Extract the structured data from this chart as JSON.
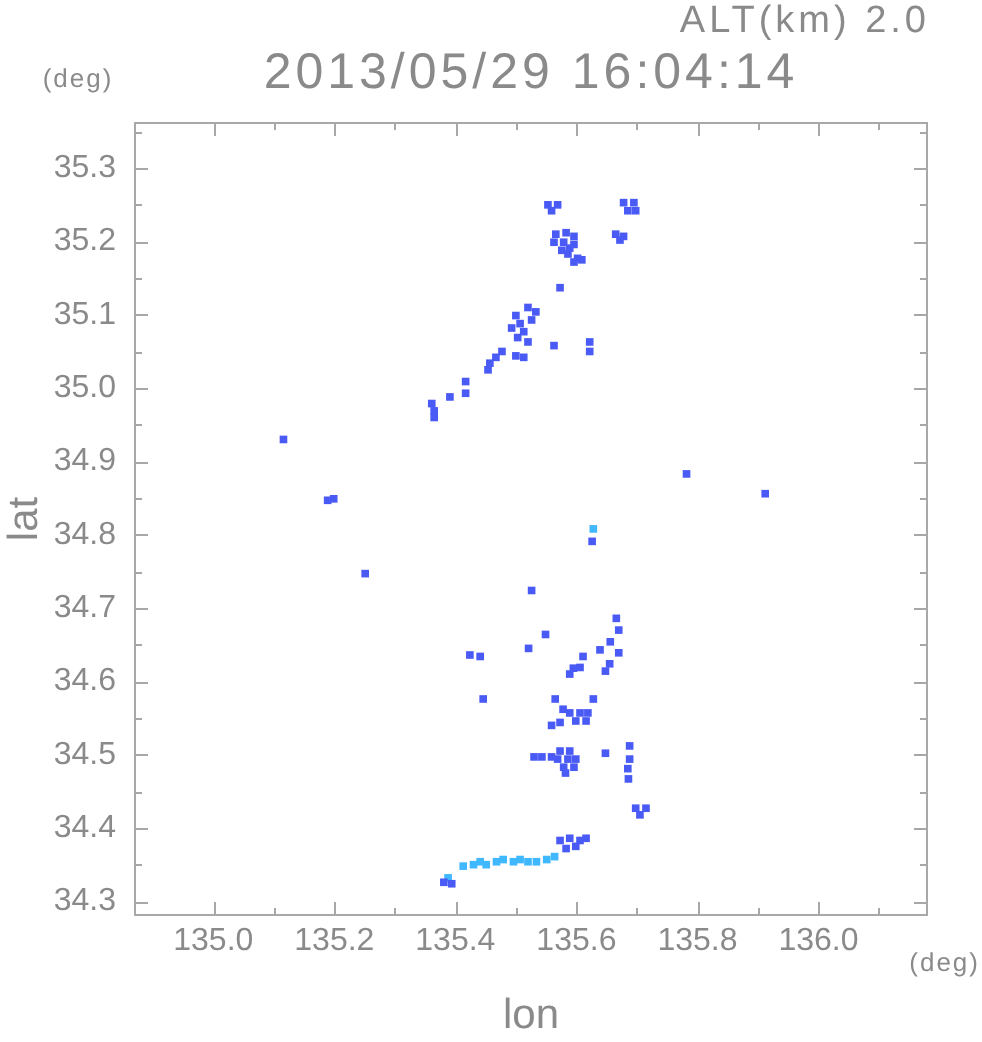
{
  "chart_data": {
    "type": "scatter",
    "title": "2013/05/29 16:04:14",
    "subtitle": "ALT(km) 2.0",
    "xlabel": "lon",
    "ylabel": "lat",
    "annotations": [
      "(deg)",
      "(deg)"
    ],
    "xlim": [
      134.869,
      136.181
    ],
    "ylim": [
      34.28,
      35.363
    ],
    "xticks": [
      {
        "value": 135.0,
        "label": "135.0"
      },
      {
        "value": 135.1,
        "label": null
      },
      {
        "value": 135.2,
        "label": "135.2"
      },
      {
        "value": 135.3,
        "label": null
      },
      {
        "value": 135.4,
        "label": "135.4"
      },
      {
        "value": 135.5,
        "label": null
      },
      {
        "value": 135.6,
        "label": "135.6"
      },
      {
        "value": 135.7,
        "label": null
      },
      {
        "value": 135.8,
        "label": "135.8"
      },
      {
        "value": 135.9,
        "label": null
      },
      {
        "value": 136.0,
        "label": "136.0"
      },
      {
        "value": 136.1,
        "label": null
      }
    ],
    "yticks": [
      {
        "value": 34.3,
        "label": "34.3"
      },
      {
        "value": 34.35,
        "label": null
      },
      {
        "value": 34.4,
        "label": "34.4"
      },
      {
        "value": 34.45,
        "label": null
      },
      {
        "value": 34.5,
        "label": "34.5"
      },
      {
        "value": 34.55,
        "label": null
      },
      {
        "value": 34.6,
        "label": "34.6"
      },
      {
        "value": 34.65,
        "label": null
      },
      {
        "value": 34.7,
        "label": "34.7"
      },
      {
        "value": 34.75,
        "label": null
      },
      {
        "value": 34.8,
        "label": "34.8"
      },
      {
        "value": 34.85,
        "label": null
      },
      {
        "value": 34.9,
        "label": "34.9"
      },
      {
        "value": 34.95,
        "label": null
      },
      {
        "value": 35.0,
        "label": "35.0"
      },
      {
        "value": 35.05,
        "label": null
      },
      {
        "value": 35.1,
        "label": "35.1"
      },
      {
        "value": 35.15,
        "label": null
      },
      {
        "value": 35.2,
        "label": "35.2"
      },
      {
        "value": 35.25,
        "label": null
      },
      {
        "value": 35.3,
        "label": "35.3"
      },
      {
        "value": 35.35,
        "label": null
      }
    ],
    "marker": "square",
    "legend": false,
    "grid": false,
    "series": [
      {
        "color": "#4a5af5",
        "x": [
          135.553,
          135.569,
          135.559,
          135.678,
          135.695,
          135.685,
          135.698,
          135.566,
          135.583,
          135.596,
          135.563,
          135.579,
          135.596,
          135.576,
          135.586,
          135.589,
          135.602,
          135.609,
          135.596,
          135.665,
          135.678,
          135.672,
          135.573,
          135.52,
          135.533,
          135.526,
          135.5,
          135.493,
          135.507,
          135.513,
          135.503,
          135.52,
          135.5,
          135.513,
          135.477,
          135.467,
          135.457,
          135.454,
          135.563,
          135.622,
          135.622,
          135.417,
          135.417,
          135.391,
          135.361,
          135.365,
          135.365,
          135.116,
          135.189,
          135.199,
          135.782,
          135.912,
          135.626,
          135.251,
          135.526,
          135.666,
          135.67,
          135.549,
          135.656,
          135.521,
          135.639,
          135.424,
          135.441,
          135.611,
          135.67,
          135.655,
          135.595,
          135.606,
          135.589,
          135.648,
          135.446,
          135.565,
          135.628,
          135.578,
          135.589,
          135.606,
          135.619,
          135.599,
          135.616,
          135.573,
          135.559,
          135.573,
          135.589,
          135.569,
          135.586,
          135.599,
          135.579,
          135.596,
          135.582,
          135.53,
          135.543,
          135.559,
          135.648,
          135.688,
          135.688,
          135.685,
          135.686,
          135.698,
          135.715,
          135.705,
          135.573,
          135.589,
          135.606,
          135.616,
          135.583,
          135.599,
          135.381,
          135.394
        ],
        "values": [
          35.25,
          35.25,
          35.242,
          35.253,
          35.253,
          35.242,
          35.242,
          35.21,
          35.212,
          35.207,
          35.199,
          35.199,
          35.196,
          35.188,
          35.183,
          35.191,
          35.177,
          35.175,
          35.172,
          35.21,
          35.207,
          35.202,
          35.137,
          35.11,
          35.104,
          35.093,
          35.099,
          35.082,
          35.088,
          35.077,
          35.069,
          35.063,
          35.044,
          35.042,
          35.05,
          35.042,
          35.034,
          35.025,
          35.058,
          35.063,
          35.05,
          35.009,
          34.993,
          34.988,
          34.979,
          34.969,
          34.96,
          34.93,
          34.847,
          34.849,
          34.883,
          34.856,
          34.791,
          34.747,
          34.724,
          34.686,
          34.67,
          34.664,
          34.654,
          34.645,
          34.643,
          34.636,
          34.634,
          34.634,
          34.639,
          34.624,
          34.618,
          34.619,
          34.61,
          34.614,
          34.576,
          34.576,
          34.576,
          34.562,
          34.557,
          34.557,
          34.557,
          34.546,
          34.546,
          34.544,
          34.54,
          34.505,
          34.505,
          34.494,
          34.494,
          34.494,
          34.483,
          34.483,
          34.475,
          34.497,
          34.497,
          34.497,
          34.502,
          34.512,
          34.494,
          34.481,
          34.467,
          34.427,
          34.427,
          34.418,
          34.383,
          34.386,
          34.383,
          34.386,
          34.372,
          34.375,
          34.326,
          34.324
        ]
      },
      {
        "color": "#40b8ff",
        "x": [
          135.413,
          135.43,
          135.441,
          135.451,
          135.468,
          135.479,
          135.496,
          135.507,
          135.52,
          135.534,
          135.551,
          135.564,
          135.628,
          135.388
        ],
        "values": [
          34.348,
          34.35,
          34.354,
          34.35,
          34.354,
          34.357,
          34.354,
          34.357,
          34.354,
          34.354,
          34.357,
          34.361,
          34.808,
          34.332
        ]
      }
    ]
  }
}
